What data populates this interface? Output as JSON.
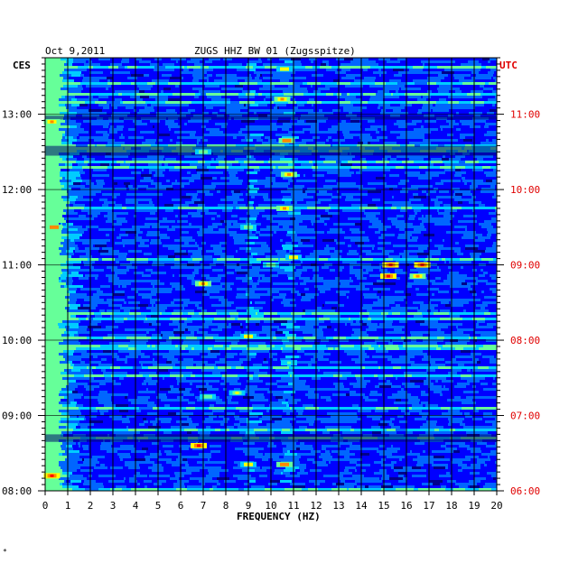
{
  "header": {
    "date": "Oct 9,2011",
    "station": "ZUGS HHZ BW 01 (Zugsspitze)",
    "left_tz": "CES",
    "right_tz": "UTC"
  },
  "footer_mark": "*",
  "chart_data": {
    "type": "heatmap",
    "title": "ZUGS HHZ BW 01 (Zugsspitze)",
    "date": "Oct 9,2011",
    "xlabel": "FREQUENCY (HZ)",
    "xlim": [
      0,
      20
    ],
    "x_ticks": [
      0,
      1,
      2,
      3,
      4,
      5,
      6,
      7,
      8,
      9,
      10,
      11,
      12,
      13,
      14,
      15,
      16,
      17,
      18,
      19,
      20
    ],
    "y_axis_left": {
      "label": "CES",
      "ticks": [
        "13:00",
        "12:00",
        "11:00",
        "10:00",
        "09:00",
        "08:00"
      ],
      "tick_hours": [
        13,
        12,
        11,
        10,
        9,
        8
      ],
      "range_hours": [
        8,
        13.75
      ]
    },
    "y_axis_right": {
      "label": "UTC",
      "ticks": [
        "11:00",
        "10:00",
        "09:00",
        "08:00",
        "07:00",
        "06:00"
      ]
    },
    "colormap": [
      "#00008b",
      "#0000ff",
      "#0066ff",
      "#00ccff",
      "#66ff99",
      "#ffff00",
      "#ff8800",
      "#ff0000"
    ],
    "background_color": "#0a1fc4",
    "grid": true,
    "hot_spots": [
      {
        "f_hz": 0.3,
        "hour": 8.2,
        "level": 0.9
      },
      {
        "f_hz": 0.4,
        "hour": 11.5,
        "level": 0.85
      },
      {
        "f_hz": 0.3,
        "hour": 12.9,
        "level": 0.8
      },
      {
        "f_hz": 6.8,
        "hour": 8.6,
        "level": 0.95
      },
      {
        "f_hz": 9.0,
        "hour": 8.35,
        "level": 0.7
      },
      {
        "f_hz": 10.6,
        "hour": 8.35,
        "level": 0.85
      },
      {
        "f_hz": 7.2,
        "hour": 9.25,
        "level": 0.6
      },
      {
        "f_hz": 8.5,
        "hour": 9.3,
        "level": 0.65
      },
      {
        "f_hz": 10.8,
        "hour": 9.7,
        "level": 0.55
      },
      {
        "f_hz": 9.0,
        "hour": 10.05,
        "level": 0.7
      },
      {
        "f_hz": 7.0,
        "hour": 10.75,
        "level": 0.75
      },
      {
        "f_hz": 10.0,
        "hour": 11.0,
        "level": 0.6
      },
      {
        "f_hz": 15.3,
        "hour": 11.0,
        "level": 0.9
      },
      {
        "f_hz": 16.7,
        "hour": 11.0,
        "level": 0.95
      },
      {
        "f_hz": 15.2,
        "hour": 10.85,
        "level": 0.9
      },
      {
        "f_hz": 16.5,
        "hour": 10.85,
        "level": 0.8
      },
      {
        "f_hz": 11.0,
        "hour": 11.1,
        "level": 0.7
      },
      {
        "f_hz": 10.6,
        "hour": 11.75,
        "level": 0.75
      },
      {
        "f_hz": 9.0,
        "hour": 11.5,
        "level": 0.6
      },
      {
        "f_hz": 10.8,
        "hour": 12.2,
        "level": 0.75
      },
      {
        "f_hz": 7.0,
        "hour": 12.5,
        "level": 0.6
      },
      {
        "f_hz": 10.7,
        "hour": 12.65,
        "level": 0.85
      },
      {
        "f_hz": 10.6,
        "hour": 13.6,
        "level": 0.7
      },
      {
        "f_hz": 10.5,
        "hour": 13.2,
        "level": 0.75
      }
    ]
  }
}
